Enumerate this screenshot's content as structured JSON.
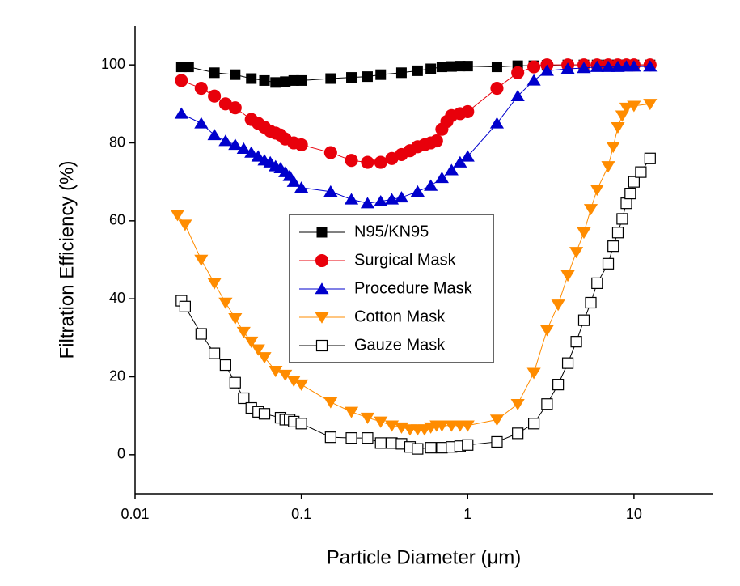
{
  "chart_data": {
    "type": "scatter-line",
    "x_label": "Particle Diameter (μm)",
    "y_label": "Filtration Efficiency (%)",
    "x_log": true,
    "xlim": [
      0.01,
      30
    ],
    "xticks": [
      0.01,
      0.1,
      1,
      10
    ],
    "ylim": [
      -10,
      110
    ],
    "yticks": [
      0,
      20,
      40,
      60,
      80,
      100
    ],
    "grid": false,
    "series": [
      {
        "name": "N95/KN95",
        "color": "#000000",
        "marker": "square",
        "x": [
          0.019,
          0.021,
          0.03,
          0.04,
          0.05,
          0.06,
          0.07,
          0.08,
          0.09,
          0.1,
          0.15,
          0.2,
          0.25,
          0.3,
          0.4,
          0.5,
          0.6,
          0.7,
          0.8,
          0.9,
          1.0,
          1.5,
          2,
          2.5,
          3,
          4,
          5,
          6,
          7,
          8,
          9,
          10,
          12.5
        ],
        "values": [
          99.5,
          99.5,
          98,
          97.5,
          96.5,
          96,
          95.5,
          95.7,
          96,
          96,
          96.5,
          96.8,
          97,
          97.5,
          98,
          98.5,
          99,
          99.5,
          99.6,
          99.7,
          99.7,
          99.5,
          99.8,
          99.8,
          99.9,
          100,
          100,
          100,
          100,
          100,
          100,
          100,
          100
        ]
      },
      {
        "name": "Surgical Mask",
        "color": "#e8000b",
        "marker": "circle",
        "x": [
          0.019,
          0.025,
          0.03,
          0.035,
          0.04,
          0.05,
          0.055,
          0.06,
          0.065,
          0.07,
          0.075,
          0.08,
          0.09,
          0.1,
          0.15,
          0.2,
          0.25,
          0.3,
          0.35,
          0.4,
          0.45,
          0.5,
          0.55,
          0.6,
          0.65,
          0.7,
          0.75,
          0.8,
          0.9,
          1,
          1.5,
          2,
          2.5,
          3,
          4,
          5,
          6,
          7,
          8,
          9,
          10,
          12.5
        ],
        "values": [
          96,
          94,
          92,
          90,
          89,
          86,
          85,
          84,
          83,
          82.5,
          82,
          81,
          80,
          79.5,
          77.5,
          75.5,
          75,
          75,
          76,
          77,
          78,
          79,
          79.5,
          80,
          80.5,
          83.5,
          85.5,
          87,
          87.5,
          88,
          94,
          98,
          99.5,
          100,
          100,
          100,
          100,
          100,
          100,
          100,
          100,
          100
        ]
      },
      {
        "name": "Procedure Mask",
        "color": "#0000cc",
        "marker": "triangle-up",
        "x": [
          0.019,
          0.025,
          0.03,
          0.035,
          0.04,
          0.045,
          0.05,
          0.055,
          0.06,
          0.065,
          0.07,
          0.075,
          0.08,
          0.085,
          0.09,
          0.1,
          0.15,
          0.2,
          0.25,
          0.3,
          0.35,
          0.4,
          0.5,
          0.6,
          0.7,
          0.8,
          0.9,
          1,
          1.5,
          2,
          2.5,
          3,
          4,
          5,
          6,
          7,
          8,
          9,
          10,
          12.5
        ],
        "values": [
          87.5,
          85,
          82,
          80.5,
          79.5,
          78.5,
          77.5,
          76.5,
          75.5,
          75,
          74,
          73.5,
          72.5,
          71.5,
          70,
          68.5,
          67.5,
          65.5,
          64.5,
          65,
          65.5,
          66,
          67.5,
          69,
          71,
          73,
          75,
          76.5,
          85,
          92,
          96,
          98.5,
          99,
          99.2,
          99.5,
          99.5,
          99.5,
          99.6,
          99.6,
          99.6
        ]
      },
      {
        "name": "Cotton Mask",
        "color": "#ff8c00",
        "marker": "triangle-down",
        "x": [
          0.018,
          0.02,
          0.025,
          0.03,
          0.035,
          0.04,
          0.045,
          0.05,
          0.055,
          0.06,
          0.07,
          0.08,
          0.09,
          0.1,
          0.15,
          0.2,
          0.25,
          0.3,
          0.35,
          0.4,
          0.45,
          0.5,
          0.55,
          0.6,
          0.65,
          0.7,
          0.8,
          0.9,
          1,
          1.5,
          2,
          2.5,
          3,
          3.5,
          4,
          4.5,
          5,
          5.5,
          6,
          7,
          7.5,
          8,
          8.5,
          9,
          10,
          12.5
        ],
        "values": [
          61.5,
          59,
          50,
          44,
          39,
          35,
          31.5,
          29,
          27,
          25,
          21.5,
          20.5,
          19,
          18,
          13.5,
          11,
          9.5,
          8.5,
          7.5,
          7,
          6.5,
          6.5,
          6.5,
          7,
          7.5,
          7.5,
          7.5,
          7.5,
          7.5,
          9,
          13,
          21,
          32,
          38.5,
          46,
          52,
          57,
          63,
          68,
          74,
          79,
          84,
          87,
          89,
          89.5,
          90
        ]
      },
      {
        "name": "Gauze Mask",
        "color": "#000000",
        "marker": "open-square",
        "x": [
          0.019,
          0.02,
          0.025,
          0.03,
          0.035,
          0.04,
          0.045,
          0.05,
          0.055,
          0.06,
          0.075,
          0.08,
          0.085,
          0.09,
          0.1,
          0.15,
          0.2,
          0.25,
          0.3,
          0.35,
          0.4,
          0.45,
          0.5,
          0.6,
          0.7,
          0.8,
          0.9,
          1,
          1.5,
          2,
          2.5,
          3,
          3.5,
          4,
          4.5,
          5,
          5.5,
          6,
          7,
          7.5,
          8,
          8.5,
          9,
          9.5,
          10,
          11,
          12.5
        ],
        "values": [
          39.5,
          38,
          31,
          26,
          23,
          18.5,
          14.5,
          12,
          11,
          10.5,
          9.5,
          9,
          9,
          8.5,
          8,
          4.5,
          4.3,
          4.3,
          3,
          3,
          2.8,
          2,
          1.5,
          1.8,
          1.8,
          2,
          2.2,
          2.5,
          3.3,
          5.5,
          8,
          13,
          18,
          23.5,
          29,
          34.5,
          39,
          44,
          49,
          53.5,
          57,
          60.5,
          64.5,
          67,
          70,
          72.5,
          76
        ]
      }
    ]
  }
}
